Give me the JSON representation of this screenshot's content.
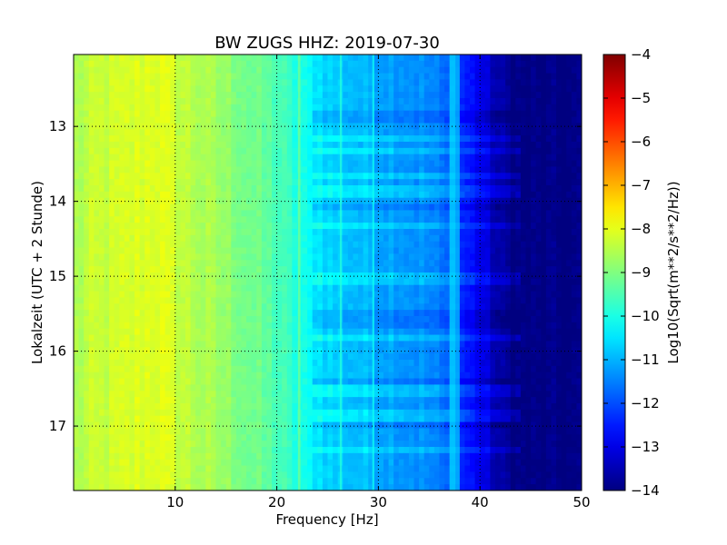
{
  "chart_data": {
    "type": "heatmap",
    "title": "BW ZUGS HHZ: 2019-07-30",
    "xlabel": "Frequency [Hz]",
    "ylabel": "Lokalzeit (UTC + 2 Stunde)",
    "xlim": [
      0,
      50
    ],
    "ylim": [
      12.04,
      17.86
    ],
    "x_ticks": [
      10,
      20,
      30,
      40,
      50
    ],
    "y_ticks": [
      13,
      14,
      15,
      16,
      17
    ],
    "grid": true,
    "colormap": "jet",
    "colorbar": {
      "label": "Log10(Sqrt(m**2/s**2/Hz))",
      "range": [
        -14,
        -4
      ],
      "ticks": [
        -4,
        -5,
        -6,
        -7,
        -8,
        -9,
        -10,
        -11,
        -12,
        -13,
        -14
      ]
    },
    "frequency_profile": {
      "frequency_hz": [
        0,
        2,
        5,
        8,
        10,
        12,
        15,
        18,
        20,
        21,
        22,
        23,
        24,
        25,
        27,
        30,
        33,
        35,
        36,
        37,
        37.5,
        38,
        39,
        40,
        41,
        42,
        44,
        47,
        50
      ],
      "log10_amplitude": [
        -8.6,
        -8.35,
        -8.2,
        -8.0,
        -8.25,
        -8.5,
        -8.8,
        -9.2,
        -9.5,
        -9.7,
        -9.95,
        -10.2,
        -10.45,
        -10.65,
        -10.85,
        -11.05,
        -11.25,
        -11.4,
        -11.6,
        -11.9,
        -11.2,
        -12.3,
        -12.6,
        -12.9,
        -13.3,
        -13.7,
        -13.98,
        -14.0,
        -14.0
      ]
    }
  }
}
